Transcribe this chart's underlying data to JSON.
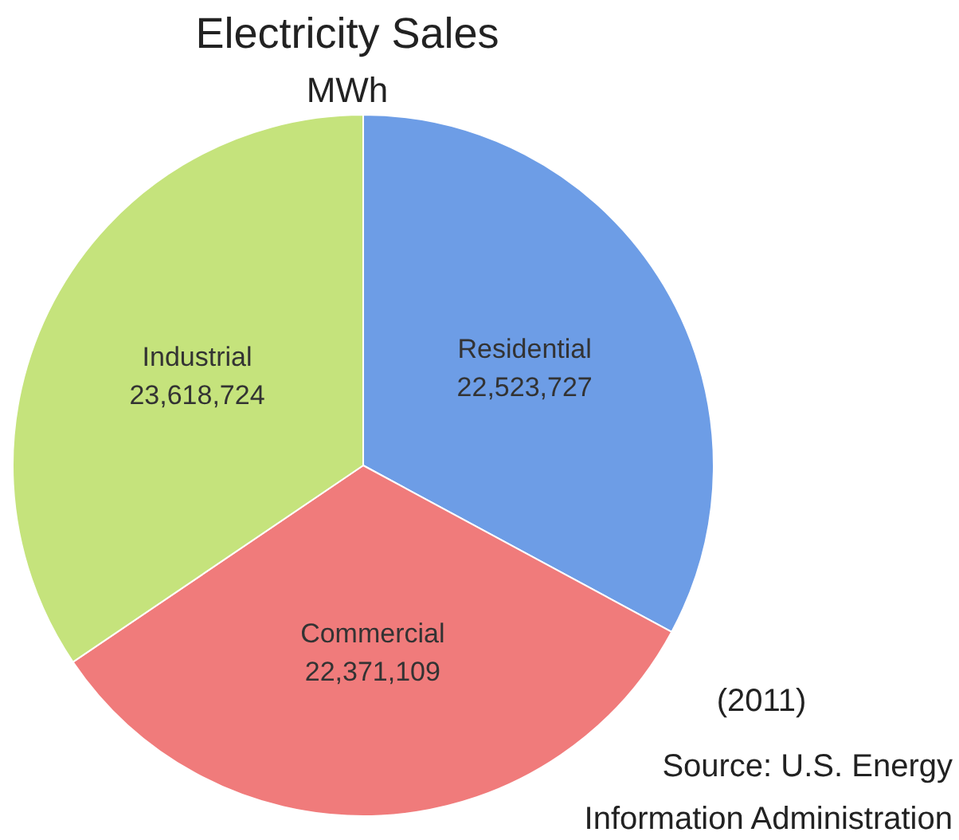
{
  "chart_data": {
    "type": "pie",
    "title": "Electricity Sales",
    "subtitle": "MWh",
    "categories": [
      "Residential",
      "Commercial",
      "Industrial"
    ],
    "values": [
      22523727,
      22371109,
      23618724
    ],
    "colors": [
      "#6d9de6",
      "#f07b7b",
      "#c5e37c"
    ],
    "value_labels": [
      "22,523,727",
      "22,371,109",
      "23,618,724"
    ],
    "annotations": [
      "(2011)",
      "Source: U.S. Energy Information Administration"
    ]
  }
}
